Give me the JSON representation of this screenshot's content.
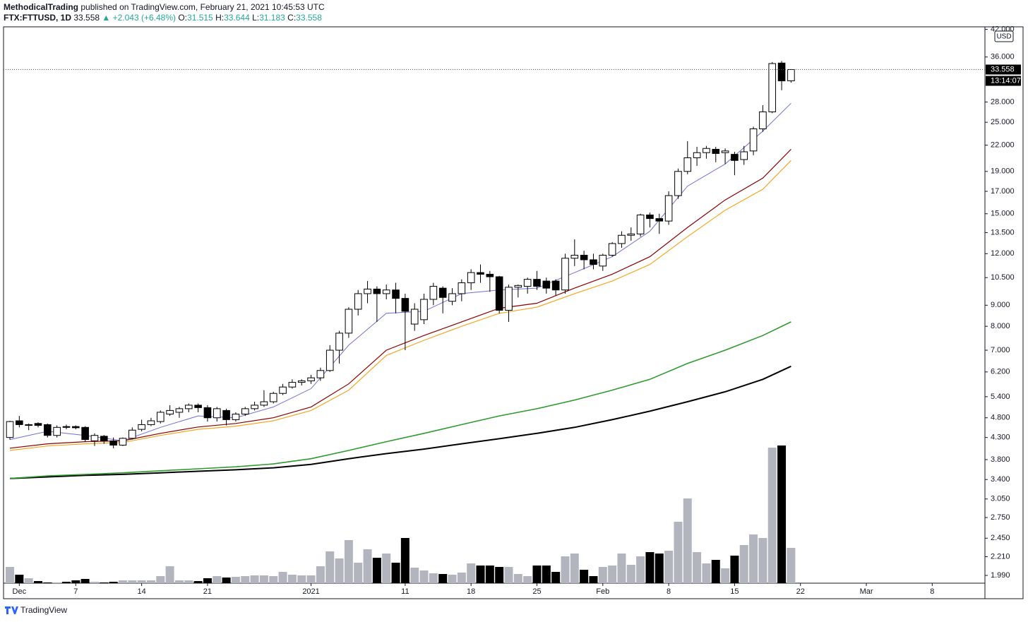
{
  "header": {
    "author": "MethodicalTrading",
    "published": "published on TradingView.com, February 21, 2021 10:45:53 UTC",
    "symbol": "FTX:FTTUSD, 1D",
    "last": "33.558",
    "change": "▲ +2.043 (+6.48%)",
    "o_label": "O:",
    "o": "31.515",
    "h_label": "H:",
    "h": "33.644",
    "l_label": "L:",
    "l": "31.183",
    "c_label": "C:",
    "c": "33.558"
  },
  "branding": "TradingView",
  "chart_data": {
    "type": "candlestick",
    "currency": "USD",
    "log_scale": true,
    "last_price_label": "33.558",
    "countdown": "13:14:07",
    "up_color": "#ffffff",
    "down_color": "#000000",
    "volume_up_color": "#b2b5be",
    "volume_down_color": "#000000",
    "ylim": [
      1.906,
      42.6
    ],
    "yticks": [
      {
        "value": 1.99,
        "label": "1.990"
      },
      {
        "value": 2.21,
        "label": "2.210"
      },
      {
        "value": 2.45,
        "label": "2.450"
      },
      {
        "value": 2.75,
        "label": "2.750"
      },
      {
        "value": 3.05,
        "label": "3.050"
      },
      {
        "value": 3.4,
        "label": "3.400"
      },
      {
        "value": 3.8,
        "label": "3.800"
      },
      {
        "value": 4.3,
        "label": "4.300"
      },
      {
        "value": 4.8,
        "label": "4.800"
      },
      {
        "value": 5.4,
        "label": "5.400"
      },
      {
        "value": 6.2,
        "label": "6.200"
      },
      {
        "value": 7,
        "label": "7.000"
      },
      {
        "value": 8,
        "label": "8.000"
      },
      {
        "value": 9,
        "label": "9.000"
      },
      {
        "value": 10.5,
        "label": "10.500"
      },
      {
        "value": 12,
        "label": "12.000"
      },
      {
        "value": 13.5,
        "label": "13.500"
      },
      {
        "value": 15,
        "label": "15.000"
      },
      {
        "value": 17,
        "label": "17.000"
      },
      {
        "value": 19,
        "label": "19.000"
      },
      {
        "value": 22,
        "label": "22.000"
      },
      {
        "value": 25,
        "label": "25.000"
      },
      {
        "value": 28,
        "label": "28.000"
      },
      {
        "value": 36,
        "label": "36.000"
      },
      {
        "value": 42,
        "label": "42.000"
      }
    ],
    "xlim": [
      -0.675,
      103.6
    ],
    "xticks": [
      {
        "value": 1,
        "label": "Dec"
      },
      7,
      14,
      21,
      {
        "value": 32,
        "label": "2021"
      },
      {
        "value": 42,
        "label": "11"
      },
      {
        "value": 49,
        "label": "18"
      },
      {
        "value": 56,
        "label": "25"
      },
      {
        "value": 63,
        "label": "Feb"
      },
      {
        "value": 70,
        "label": "8"
      },
      {
        "value": 77,
        "label": "15"
      },
      {
        "value": 84,
        "label": "22"
      },
      {
        "value": 91,
        "label": "Mar"
      },
      {
        "value": 98,
        "label": "8"
      }
    ],
    "volume_ylim": [
      0,
      788
    ],
    "open": [
      4.3,
      4.72,
      4.6,
      4.65,
      4.62,
      4.35,
      4.57,
      4.57,
      4.55,
      4.22,
      4.33,
      4.22,
      4.12,
      4.28,
      4.5,
      4.62,
      4.7,
      4.9,
      4.95,
      5.05,
      5.15,
      5.08,
      4.8,
      5.0,
      4.75,
      4.9,
      5.05,
      5.15,
      5.25,
      5.5,
      5.7,
      5.85,
      5.9,
      6.0,
      6.25,
      7.0,
      7.7,
      8.8,
      9.6,
      9.85,
      9.6,
      9.8,
      9.35,
      8.1,
      8.3,
      9.3,
      9.9,
      9.2,
      9.6,
      10.2,
      10.8,
      10.7,
      10.55,
      8.75,
      9.95,
      10.0,
      10.4,
      10.3,
      10.3,
      9.8,
      11.7,
      11.9,
      11.6,
      11.2,
      11.9,
      12.7,
      13.3,
      13.4,
      14.9,
      14.6,
      14.4,
      16.6,
      19.0,
      20.5,
      21.1,
      21.5,
      21.1,
      20.9,
      20.3,
      21.3,
      24.1,
      26.5,
      34.8,
      31.515
    ],
    "high": [
      4.72,
      4.85,
      4.65,
      4.68,
      4.65,
      4.6,
      4.62,
      4.6,
      4.58,
      4.4,
      4.36,
      4.3,
      4.3,
      4.55,
      4.75,
      4.8,
      5.0,
      5.15,
      5.1,
      5.2,
      5.2,
      5.15,
      5.1,
      5.05,
      4.95,
      5.1,
      5.25,
      5.6,
      5.55,
      5.8,
      5.95,
      5.95,
      6.1,
      6.35,
      7.2,
      7.8,
      8.9,
      9.8,
      10.3,
      10.0,
      10.1,
      10.2,
      9.6,
      9.1,
      9.6,
      10.2,
      10.0,
      9.9,
      10.4,
      11.0,
      11.3,
      10.9,
      10.6,
      10.1,
      10.1,
      10.5,
      10.9,
      10.5,
      10.4,
      12.0,
      13.0,
      12.2,
      12.0,
      12.0,
      12.8,
      13.6,
      13.9,
      15.0,
      15.1,
      15.0,
      17.0,
      19.3,
      22.5,
      21.8,
      21.9,
      21.8,
      21.6,
      21.2,
      21.9,
      24.4,
      27.5,
      35.0,
      35.2,
      33.644
    ],
    "low": [
      4.25,
      4.55,
      4.48,
      4.55,
      4.3,
      4.3,
      4.5,
      4.5,
      4.2,
      4.1,
      4.15,
      4.05,
      4.1,
      4.25,
      4.45,
      4.58,
      4.65,
      4.85,
      4.8,
      4.95,
      4.95,
      4.7,
      4.7,
      4.6,
      4.7,
      4.85,
      5.0,
      5.1,
      5.2,
      5.45,
      5.65,
      5.75,
      5.8,
      5.9,
      6.2,
      6.5,
      7.5,
      8.5,
      9.1,
      8.2,
      9.3,
      8.6,
      7.0,
      7.8,
      8.1,
      9.0,
      8.6,
      9.0,
      9.2,
      9.8,
      10.2,
      9.7,
      8.6,
      8.2,
      9.4,
      9.6,
      9.8,
      9.6,
      9.5,
      9.6,
      11.2,
      11.0,
      11.0,
      10.9,
      11.8,
      12.4,
      12.9,
      13.2,
      13.9,
      13.4,
      14.1,
      16.3,
      18.7,
      19.6,
      20.4,
      20.0,
      19.8,
      18.6,
      19.7,
      20.8,
      23.7,
      26.3,
      29.9,
      31.183
    ],
    "close": [
      4.7,
      4.62,
      4.62,
      4.6,
      4.35,
      4.55,
      4.55,
      4.54,
      4.25,
      4.35,
      4.22,
      4.12,
      4.28,
      4.48,
      4.62,
      4.72,
      4.95,
      5.0,
      5.05,
      5.15,
      5.08,
      4.8,
      5.05,
      4.75,
      4.9,
      5.05,
      5.15,
      5.25,
      5.5,
      5.7,
      5.85,
      5.9,
      6.0,
      6.25,
      7.0,
      7.7,
      8.8,
      9.6,
      9.85,
      9.6,
      9.8,
      9.35,
      8.7,
      8.8,
      9.3,
      10.0,
      9.4,
      9.6,
      10.2,
      10.8,
      10.7,
      10.55,
      8.75,
      9.95,
      10.05,
      10.4,
      10.0,
      9.9,
      9.8,
      11.7,
      11.9,
      11.6,
      11.3,
      11.9,
      12.7,
      13.3,
      13.4,
      14.9,
      14.6,
      14.4,
      16.6,
      19.0,
      20.5,
      21.1,
      21.6,
      21.0,
      21.3,
      20.2,
      21.2,
      24.1,
      26.5,
      34.7,
      31.5,
      33.558
    ],
    "volume": [
      23,
      12,
      7,
      3,
      1,
      1,
      2,
      4,
      6,
      2,
      1,
      2,
      4,
      4,
      4,
      4,
      10,
      24,
      4,
      4,
      3,
      7,
      10,
      8,
      9,
      10,
      11,
      11,
      10,
      16,
      12,
      11,
      11,
      24,
      45,
      35,
      61,
      29,
      48,
      36,
      42,
      29,
      64,
      22,
      18,
      14,
      13,
      12,
      15,
      28,
      25,
      25,
      23,
      23,
      13,
      10,
      25,
      25,
      16,
      38,
      42,
      19,
      10,
      23,
      25,
      42,
      26,
      38,
      44,
      42,
      46,
      87,
      120,
      44,
      28,
      33,
      21,
      39,
      54,
      69,
      64,
      192,
      195,
      50
    ],
    "moving_averages": [
      {
        "color": "#000000",
        "width": 2,
        "x": [
          0,
          4,
          8,
          12,
          16,
          20,
          24,
          28,
          32,
          36,
          40,
          44,
          48,
          52,
          56,
          60,
          64,
          68,
          72,
          76,
          80,
          83
        ],
        "values": [
          3.42,
          3.45,
          3.48,
          3.5,
          3.53,
          3.56,
          3.59,
          3.63,
          3.7,
          3.82,
          3.93,
          4.03,
          4.15,
          4.27,
          4.4,
          4.55,
          4.75,
          4.98,
          5.25,
          5.55,
          5.95,
          6.4
        ]
      },
      {
        "color": "#2e9b2e",
        "width": 1.6,
        "x": [
          0,
          4,
          8,
          12,
          16,
          20,
          24,
          28,
          32,
          36,
          40,
          44,
          48,
          52,
          56,
          60,
          64,
          68,
          72,
          76,
          80,
          83
        ],
        "values": [
          3.42,
          3.47,
          3.5,
          3.53,
          3.57,
          3.61,
          3.65,
          3.71,
          3.82,
          4.0,
          4.2,
          4.4,
          4.62,
          4.85,
          5.05,
          5.3,
          5.6,
          5.95,
          6.5,
          7.0,
          7.6,
          8.2
        ]
      },
      {
        "color": "#f5a623",
        "width": 1.2,
        "x": [
          0,
          4,
          8,
          12,
          16,
          20,
          24,
          28,
          32,
          36,
          40,
          44,
          48,
          52,
          56,
          60,
          64,
          68,
          72,
          76,
          80,
          83
        ],
        "values": [
          4.0,
          4.1,
          4.15,
          4.18,
          4.35,
          4.5,
          4.58,
          4.72,
          5.0,
          5.6,
          6.8,
          7.4,
          8.0,
          8.6,
          8.9,
          9.6,
          10.3,
          11.3,
          13.2,
          15.3,
          17.2,
          20.2
        ]
      },
      {
        "color": "#8b0000",
        "width": 1.2,
        "x": [
          0,
          4,
          8,
          12,
          16,
          20,
          24,
          28,
          32,
          36,
          40,
          44,
          48,
          52,
          56,
          60,
          64,
          68,
          72,
          76,
          80,
          83
        ],
        "values": [
          4.05,
          4.15,
          4.2,
          4.22,
          4.4,
          4.56,
          4.65,
          4.8,
          5.1,
          5.8,
          7.0,
          7.6,
          8.2,
          8.85,
          9.1,
          9.9,
          10.7,
          11.8,
          13.9,
          16.2,
          18.3,
          21.5
        ]
      },
      {
        "color": "#6f6fd8",
        "width": 1,
        "x": [
          0,
          4,
          8,
          12,
          16,
          20,
          24,
          28,
          32,
          36,
          40,
          44,
          48,
          52,
          56,
          60,
          64,
          68,
          72,
          76,
          80,
          83
        ],
        "values": [
          4.25,
          4.45,
          4.35,
          4.22,
          4.55,
          4.85,
          4.8,
          5.1,
          5.65,
          7.2,
          8.6,
          8.7,
          9.6,
          9.8,
          9.9,
          10.8,
          11.8,
          13.6,
          17.5,
          19.8,
          23.8,
          27.8
        ]
      }
    ]
  }
}
